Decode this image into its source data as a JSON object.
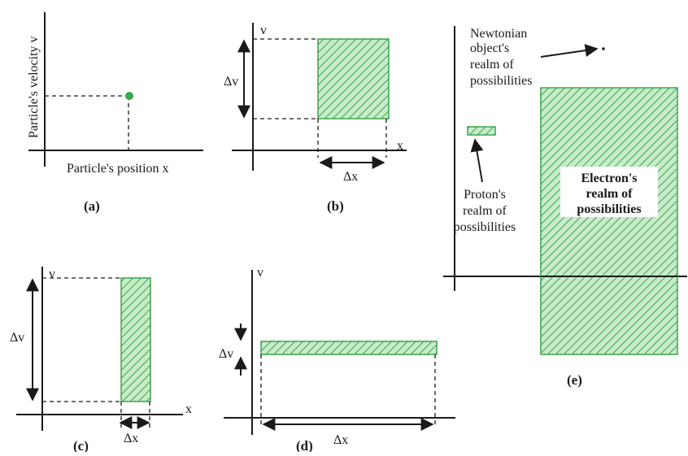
{
  "colors": {
    "hatch": "#39a64a",
    "fill_light": "#c8ebc9",
    "ink": "#1a1a1a"
  },
  "panel_a": {
    "y_axis_label": "Particle's velocity v",
    "x_axis_label": "Particle's position x",
    "caption": "(a)"
  },
  "panel_b": {
    "v_label": "v",
    "x_label": "x",
    "dv_label": "Δv",
    "dx_label": "Δx",
    "caption": "(b)"
  },
  "panel_c": {
    "v_label": "v",
    "x_label": "x",
    "dv_label": "Δv",
    "dx_label": "Δx",
    "caption": "(c)"
  },
  "panel_d": {
    "v_label": "v",
    "dv_label": "Δv",
    "dx_label": "Δx",
    "caption": "(d)"
  },
  "panel_e": {
    "newtonian_label": [
      "Newtonian",
      "object's",
      "realm of",
      "possibilities"
    ],
    "electron_label": [
      "Electron's",
      "realm of",
      "possibilities"
    ],
    "proton_label": [
      "Proton's",
      "realm of",
      "possibilities"
    ],
    "caption": "(e)"
  }
}
